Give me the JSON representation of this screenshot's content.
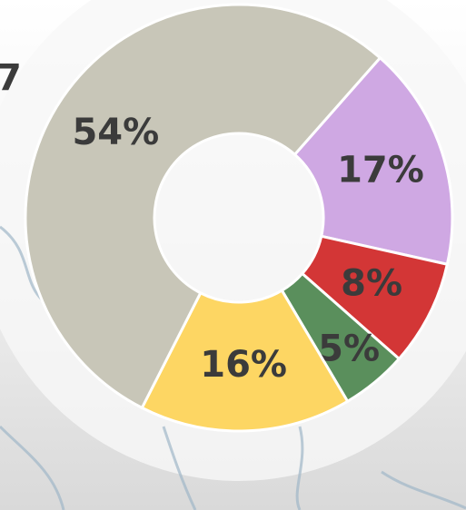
{
  "chart_data": {
    "type": "donut",
    "title": "7",
    "values": [
      17,
      8,
      5,
      16,
      54
    ],
    "value_labels": [
      "17%",
      "8%",
      "5%",
      "16%",
      "54%"
    ],
    "colors": [
      "#cfa8e3",
      "#d33636",
      "#5a8f5c",
      "#fdd663",
      "#c8c6b8"
    ]
  }
}
